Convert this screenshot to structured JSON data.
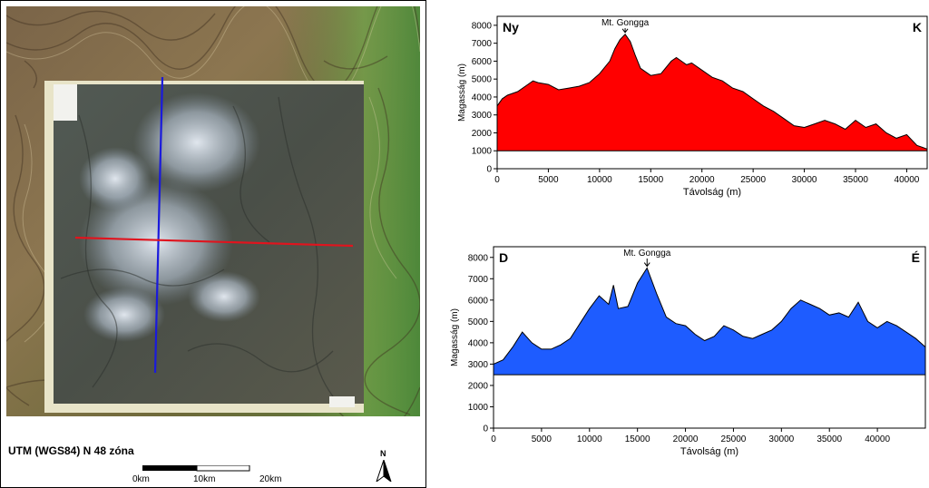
{
  "map": {
    "crs_label": "UTM (WGS84) N 48 zóna",
    "scale_labels": [
      "0km",
      "10km",
      "20km"
    ],
    "north_label": "N",
    "colors": {
      "ns_line": "#1a1adc",
      "ew_line": "#e0141e"
    }
  },
  "chart_data": [
    {
      "type": "area",
      "corner_left": "Ny",
      "corner_right": "K",
      "annotation": "Mt. Gongga",
      "annotation_x": 12500,
      "xlabel": "Távolság (m)",
      "ylabel": "Magasság (m)",
      "xlim": [
        0,
        42000
      ],
      "ylim": [
        0,
        8500
      ],
      "base": 1000,
      "fill_color": "#ff0000",
      "xticks": [
        0,
        5000,
        10000,
        15000,
        20000,
        25000,
        30000,
        35000,
        40000
      ],
      "yticks": [
        0,
        1000,
        2000,
        3000,
        4000,
        5000,
        6000,
        7000,
        8000
      ],
      "x": [
        0,
        500,
        1000,
        2000,
        3000,
        3500,
        4000,
        5000,
        6000,
        7000,
        8000,
        9000,
        10000,
        11000,
        11500,
        12000,
        12500,
        13000,
        13500,
        14000,
        15000,
        16000,
        17000,
        17500,
        18000,
        18500,
        19000,
        20000,
        21000,
        22000,
        23000,
        24000,
        25000,
        26000,
        27000,
        28000,
        29000,
        30000,
        31000,
        32000,
        33000,
        34000,
        35000,
        36000,
        37000,
        38000,
        39000,
        40000,
        41000,
        42000
      ],
      "values": [
        3500,
        3900,
        4100,
        4300,
        4700,
        4900,
        4800,
        4700,
        4400,
        4500,
        4600,
        4800,
        5300,
        6000,
        6700,
        7200,
        7500,
        7100,
        6300,
        5600,
        5200,
        5300,
        6000,
        6200,
        6000,
        5800,
        5900,
        5500,
        5100,
        4900,
        4500,
        4300,
        3900,
        3500,
        3200,
        2800,
        2400,
        2300,
        2500,
        2700,
        2500,
        2200,
        2700,
        2300,
        2500,
        2000,
        1700,
        1900,
        1300,
        1100
      ]
    },
    {
      "type": "area",
      "corner_left": "D",
      "corner_right": "É",
      "annotation": "Mt. Gongga",
      "annotation_x": 16000,
      "xlabel": "Távolság (m)",
      "ylabel": "Magasság (m)",
      "xlim": [
        0,
        45000
      ],
      "ylim": [
        0,
        8500
      ],
      "base": 2500,
      "fill_color": "#1e5cff",
      "xticks": [
        0,
        5000,
        10000,
        15000,
        20000,
        25000,
        30000,
        35000,
        40000
      ],
      "yticks": [
        0,
        1000,
        2000,
        3000,
        4000,
        5000,
        6000,
        7000,
        8000
      ],
      "x": [
        0,
        1000,
        2000,
        3000,
        4000,
        5000,
        6000,
        7000,
        8000,
        9000,
        10000,
        11000,
        12000,
        12500,
        13000,
        14000,
        15000,
        16000,
        17000,
        18000,
        19000,
        20000,
        21000,
        22000,
        23000,
        24000,
        25000,
        26000,
        27000,
        28000,
        29000,
        30000,
        31000,
        32000,
        33000,
        34000,
        35000,
        36000,
        37000,
        38000,
        39000,
        40000,
        41000,
        42000,
        43000,
        44000,
        45000
      ],
      "values": [
        3000,
        3200,
        3800,
        4500,
        4000,
        3700,
        3700,
        3900,
        4200,
        4900,
        5600,
        6200,
        5800,
        6700,
        5600,
        5700,
        6800,
        7500,
        6300,
        5200,
        4900,
        4800,
        4400,
        4100,
        4300,
        4800,
        4600,
        4300,
        4200,
        4400,
        4600,
        5000,
        5600,
        6000,
        5800,
        5600,
        5300,
        5400,
        5200,
        5900,
        5000,
        4700,
        5000,
        4800,
        4500,
        4200,
        3800
      ]
    }
  ]
}
